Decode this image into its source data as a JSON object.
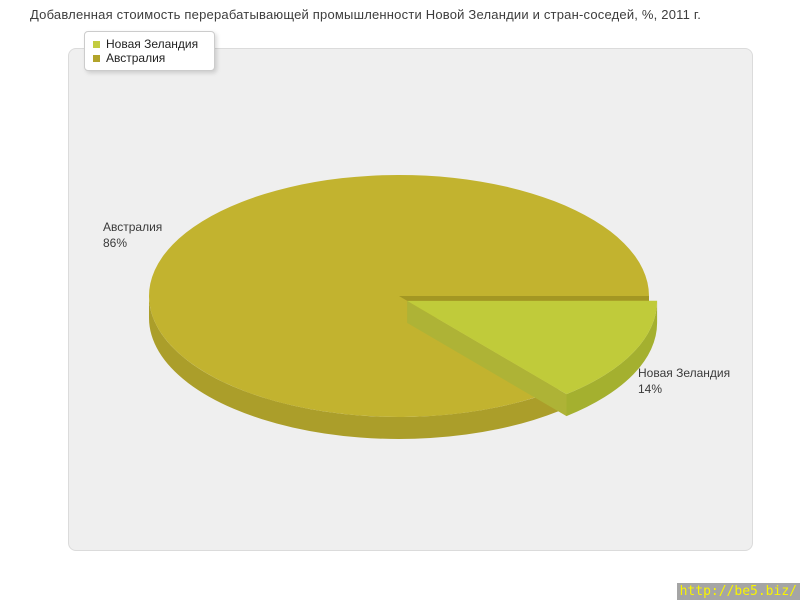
{
  "chart_data": {
    "type": "pie",
    "style_3d": true,
    "title": "Добавленная стоимость перерабатывающей промышленности Новой Зеландии и стран-соседей, %, 2011 г.",
    "legend_position": "top-left",
    "start_angle_deg": 0,
    "direction": "clockwise",
    "slices": [
      {
        "label": "Новая Зеландия",
        "value": 14,
        "pct_label": "14%",
        "color": "#c0cb3a",
        "side_color": "#a4b02f",
        "face_color": "#aeb336",
        "legend_color": "#c3cc40",
        "exploded": true
      },
      {
        "label": "Австралия",
        "value": 86,
        "pct_label": "86%",
        "color": "#c2b32f",
        "side_color": "#ab9e2a",
        "face_color": "#a39723",
        "legend_color": "#b2a42b",
        "exploded": false
      }
    ]
  },
  "panel": {
    "bg": "#efefef",
    "border": "#dbdbdb"
  },
  "footer": {
    "url": "http://be5.biz/",
    "bg": "#a5a5a5",
    "color": "#f8f400"
  }
}
